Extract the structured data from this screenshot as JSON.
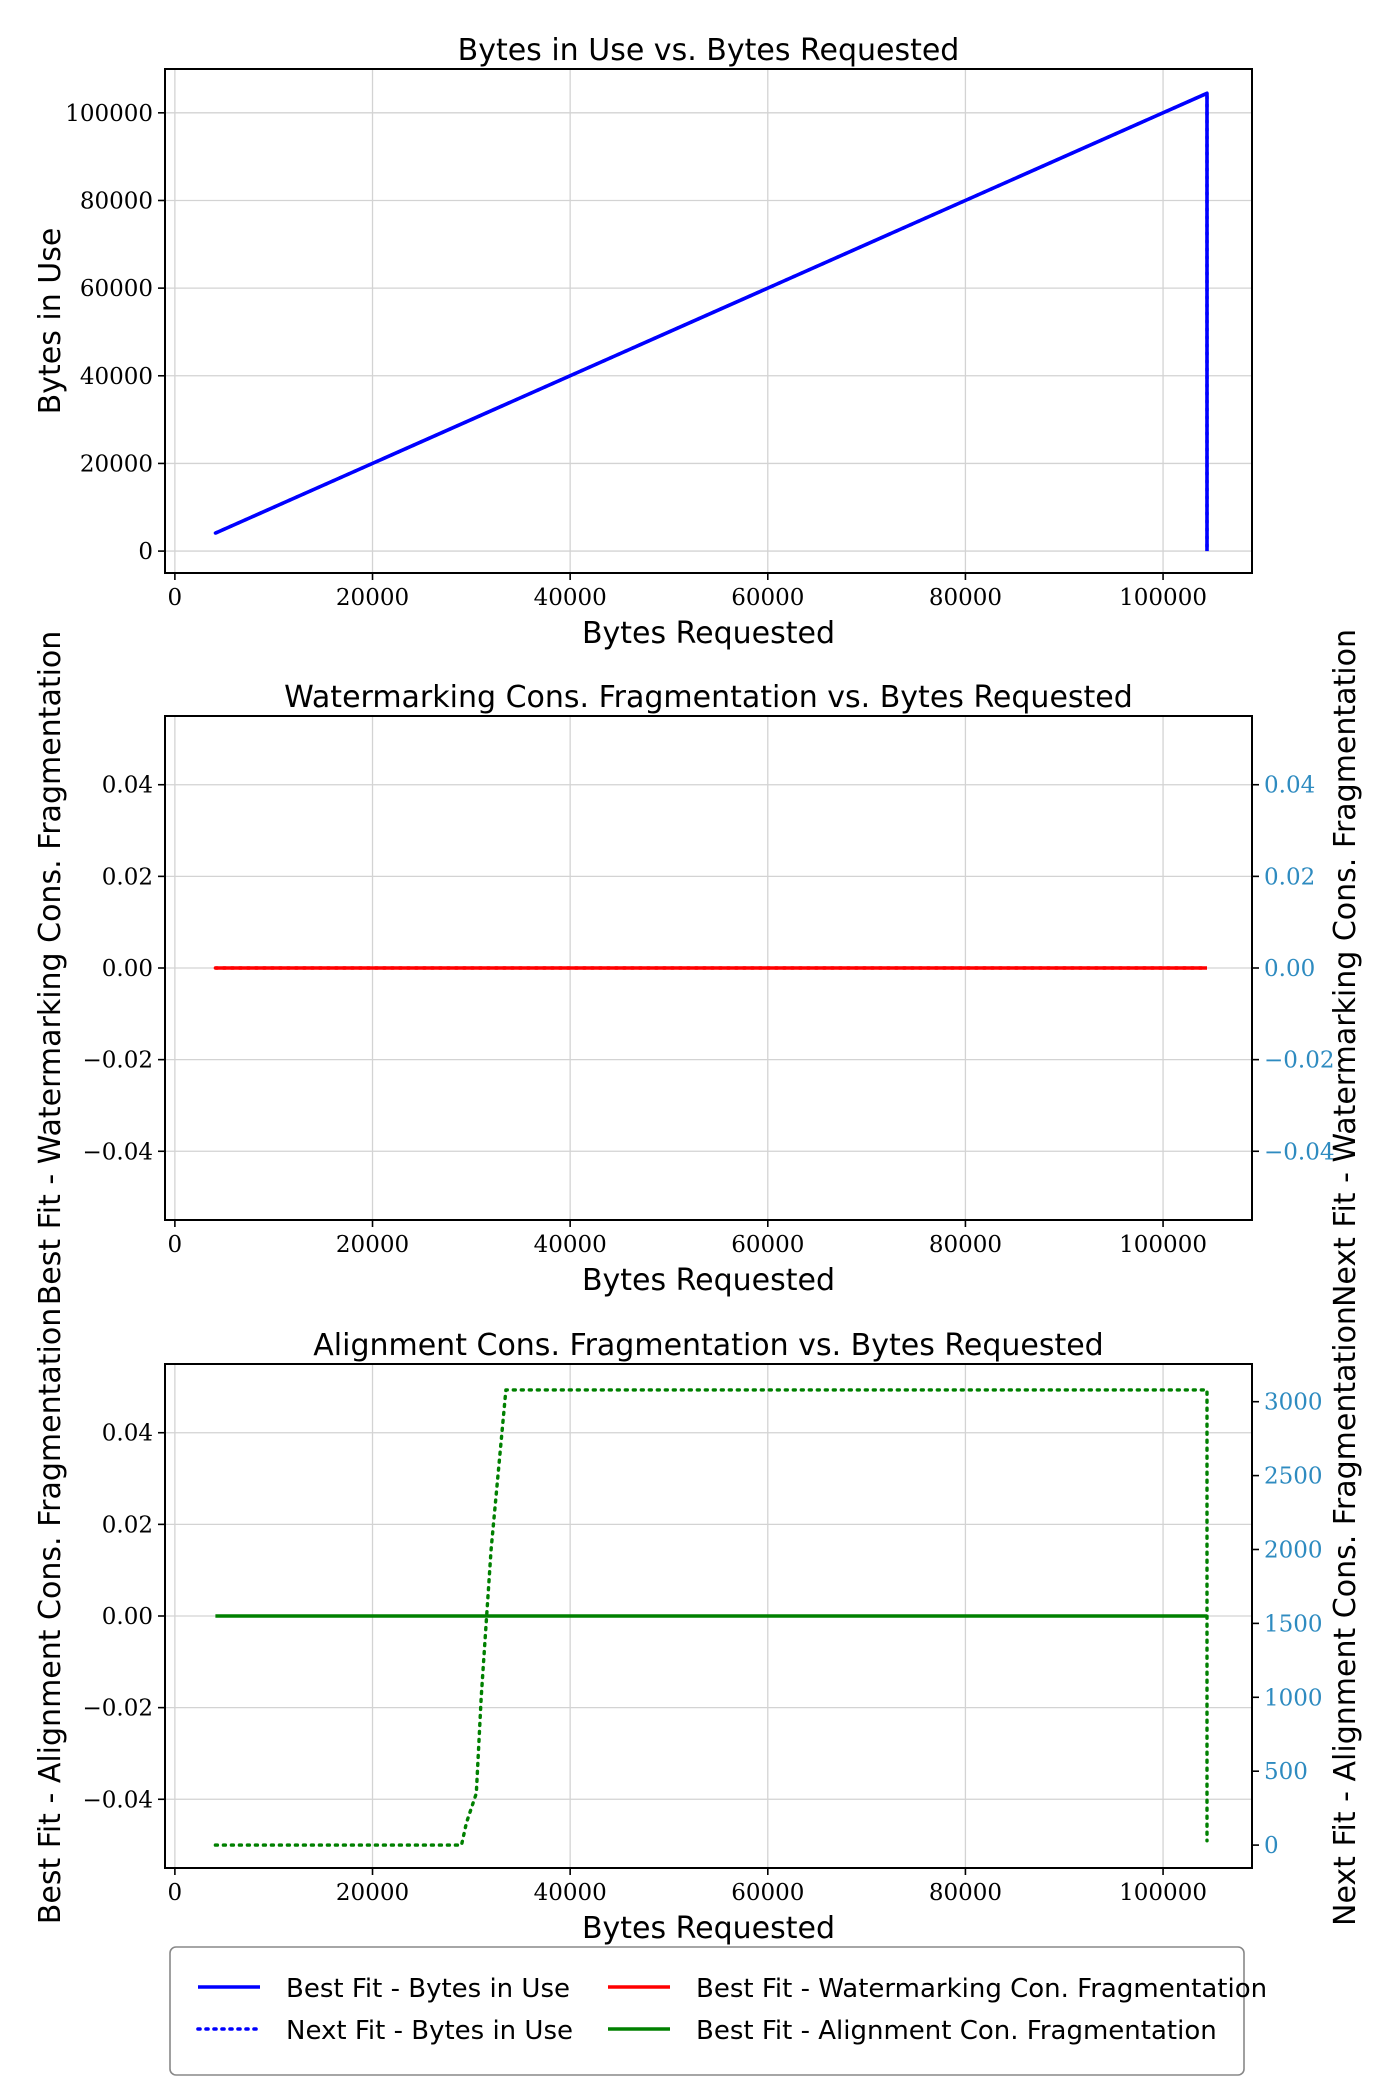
{
  "colors": {
    "best_bytes": "#0000ff",
    "next_bytes": "#0000ff",
    "watermark": "#ff0000",
    "alignment": "#008000",
    "right_axis": "#2e8bc0",
    "grid": "#d3d3d3",
    "axes": "#000000"
  },
  "chart_data": [
    {
      "type": "line",
      "title": "Bytes in Use vs. Bytes Requested",
      "xlabel": "Bytes Requested",
      "ylabel": "Bytes in Use",
      "xlim": [
        -1000,
        109000
      ],
      "ylim": [
        -5000,
        110000
      ],
      "x_ticks": [
        0,
        20000,
        40000,
        60000,
        80000,
        100000
      ],
      "y_ticks": [
        0,
        20000,
        40000,
        60000,
        80000,
        100000
      ],
      "grid": true,
      "series": [
        {
          "name": "Best Fit - Bytes in Use",
          "color": "#0000ff",
          "style": "solid",
          "x": [
            4096,
            104448,
            104448
          ],
          "y": [
            4096,
            104448,
            0
          ]
        },
        {
          "name": "Next Fit - Bytes in Use",
          "color": "#0000ff",
          "style": "dotted",
          "x": [
            4096,
            104448,
            104448
          ],
          "y": [
            4096,
            104448,
            0
          ]
        }
      ]
    },
    {
      "type": "line",
      "title": "Watermarking Cons. Fragmentation vs. Bytes Requested",
      "xlabel": "Bytes Requested",
      "ylabel": "Best Fit - Watermarking Cons. Fragmentation",
      "ylabel_right": "Next Fit - Watermarking Cons. Fragmentation",
      "xlim": [
        -1000,
        109000
      ],
      "ylim": [
        -0.055,
        0.055
      ],
      "ylim_right": [
        -0.055,
        0.055
      ],
      "x_ticks": [
        0,
        20000,
        40000,
        60000,
        80000,
        100000
      ],
      "y_ticks": [
        -0.04,
        -0.02,
        0.0,
        0.02,
        0.04
      ],
      "y_ticks_right": [
        -0.04,
        -0.02,
        0.0,
        0.02,
        0.04
      ],
      "tick_labels_left": [
        "−0.04",
        "−0.02",
        "0.00",
        "0.02",
        "0.04"
      ],
      "tick_labels_right": [
        "−0.04",
        "−0.02",
        "0.00",
        "0.02",
        "0.04"
      ],
      "grid": true,
      "series": [
        {
          "name": "Best Fit - Watermarking Con. Fragmentation",
          "color": "#ff0000",
          "style": "solid",
          "axis": "left",
          "x": [
            4096,
            104448
          ],
          "y": [
            0,
            0
          ]
        },
        {
          "color": "#ff0000",
          "style": "dotted",
          "axis": "right",
          "x": [
            4096,
            104448
          ],
          "y": [
            0,
            0
          ]
        }
      ]
    },
    {
      "type": "line",
      "title": "Alignment Cons. Fragmentation vs. Bytes Requested",
      "xlabel": "Bytes Requested",
      "ylabel": "Best Fit - Alignment Cons. Fragmentation",
      "ylabel_right": "Next Fit - Alignment Cons. Fragmentation",
      "xlim": [
        -1000,
        109000
      ],
      "ylim": [
        -0.055,
        0.055
      ],
      "ylim_right": [
        -155,
        3255
      ],
      "x_ticks": [
        0,
        20000,
        40000,
        60000,
        80000,
        100000
      ],
      "y_ticks": [
        -0.04,
        -0.02,
        0.0,
        0.02,
        0.04
      ],
      "y_ticks_right": [
        0,
        500,
        1000,
        1500,
        2000,
        2500,
        3000
      ],
      "tick_labels_left": [
        "−0.04",
        "−0.02",
        "0.00",
        "0.02",
        "0.04"
      ],
      "tick_labels_right": [
        "0",
        "500",
        "1000",
        "1500",
        "2000",
        "2500",
        "3000"
      ],
      "grid": true,
      "series": [
        {
          "name": "Best Fit - Alignment Con. Fragmentation",
          "color": "#008000",
          "style": "solid",
          "axis": "left",
          "x": [
            4096,
            104448
          ],
          "y": [
            0,
            0
          ]
        },
        {
          "color": "#008000",
          "style": "dotted",
          "axis": "right",
          "x": [
            4096,
            29000,
            29500,
            30500,
            31000,
            32000,
            33500,
            104448,
            104448
          ],
          "y": [
            0,
            0,
            150,
            350,
            1000,
            2000,
            3080,
            3080,
            30
          ]
        }
      ]
    }
  ],
  "legend": {
    "placement": "bottom",
    "items": [
      {
        "label": "Best Fit - Bytes in Use",
        "color": "#0000ff",
        "style": "solid"
      },
      {
        "label": "Best Fit - Watermarking Con. Fragmentation",
        "color": "#ff0000",
        "style": "solid"
      },
      {
        "label": "Next Fit - Bytes in Use",
        "color": "#0000ff",
        "style": "dotted"
      },
      {
        "label": "Best Fit - Alignment Con. Fragmentation",
        "color": "#008000",
        "style": "solid"
      }
    ]
  }
}
